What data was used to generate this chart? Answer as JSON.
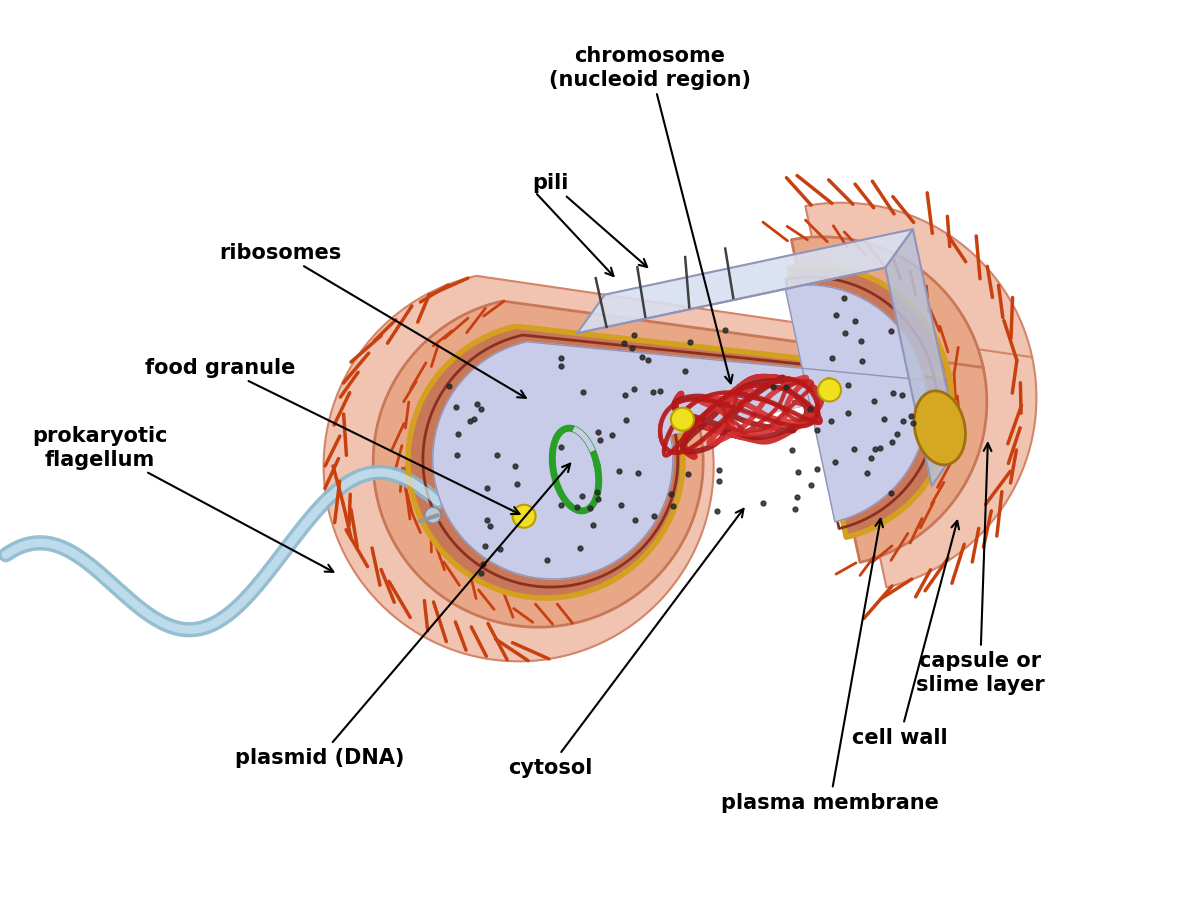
{
  "bg_color": "#ffffff",
  "capsule_color": "#f0c4b0",
  "capsule_edge": "#d4856a",
  "wall_color": "#e8a888",
  "wall_edge": "#c87858",
  "membrane_gold": "#d4a020",
  "membrane_dark": "#8a3020",
  "cytosol_color": "#c8cce8",
  "chromosome_color": "#c82020",
  "plasmid_color": "#28a028",
  "food_granule_color": "#f0e020",
  "ribosome_color": "#282828",
  "flagellum_outer": "#8ab8cc",
  "flagellum_inner": "#d0e8f8",
  "spine_color": "#c84010",
  "cut_top_color": "#d8dff0",
  "cut_side_color": "#b8c0d8",
  "vesicle_color": "#d4a820",
  "labels": {
    "chromosome": "chromosome\n(nucleoid region)",
    "pili": "pili",
    "ribosomes": "ribosomes",
    "food_granule": "food granule",
    "flagellum": "prokaryotic\nflagellum",
    "plasmid": "plasmid (DNA)",
    "cytosol": "cytosol",
    "plasma_membrane": "plasma membrane",
    "cell_wall": "cell wall",
    "capsule": "capsule or\nslime layer"
  },
  "label_fontsize": 15
}
